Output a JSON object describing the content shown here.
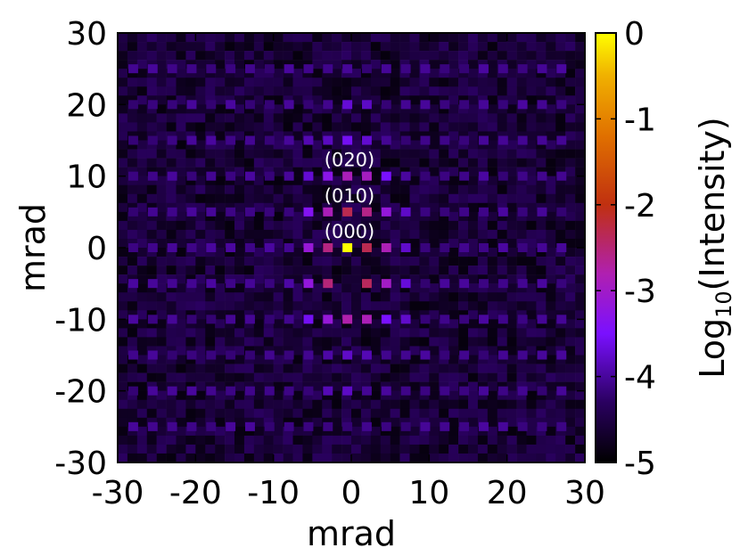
{
  "chart_data": {
    "type": "heatmap",
    "xlabel": "mrad",
    "ylabel": "mrad",
    "xlim": [
      -30,
      30
    ],
    "ylim": [
      -30,
      30
    ],
    "xticks": [
      "-30",
      "-20",
      "-10",
      "0",
      "10",
      "20",
      "30"
    ],
    "yticks": [
      "30",
      "20",
      "10",
      "0",
      "-10",
      "-20",
      "-30"
    ],
    "colorbar": {
      "label_main": "Log",
      "label_sub": "10",
      "label_rest": "(Intensity)",
      "range": [
        -5,
        0
      ],
      "ticks": [
        "0",
        "-1",
        "-2",
        "-3",
        "-4",
        "-5"
      ],
      "palette": [
        "#000000",
        "#2a0060",
        "#7a10ff",
        "#b020b0",
        "#c03010",
        "#e07000",
        "#f0b000",
        "#ffff00"
      ]
    },
    "annotations": [
      {
        "text": "(020)",
        "x": 0,
        "y": 10
      },
      {
        "text": "(010)",
        "x": 0,
        "y": 5
      },
      {
        "text": "(000)",
        "x": 0,
        "y": 0
      }
    ],
    "grid": {
      "step_mrad": 1.25,
      "background_log_intensity": [
        -4.9,
        -4.3
      ]
    },
    "peak_rows": [
      {
        "y": 25,
        "x_range": [
          -28,
          28
        ],
        "x_step": 2.5,
        "base_level": -4.0,
        "falloff": 0.02
      },
      {
        "y": 20,
        "x_range": [
          -28,
          28
        ],
        "x_step": 2.5,
        "base_level": -3.8,
        "falloff": 0.02
      },
      {
        "y": 15,
        "x_range": [
          -28,
          28
        ],
        "x_step": 2.5,
        "base_level": -3.6,
        "falloff": 0.025
      },
      {
        "y": 10,
        "x_range": [
          -28,
          28
        ],
        "x_step": 2.5,
        "base_level": -2.7,
        "falloff": 0.06
      },
      {
        "y": 5,
        "x_range": [
          -28,
          28
        ],
        "x_step": 2.5,
        "base_level": -2.1,
        "falloff": 0.085
      },
      {
        "y": 0,
        "x_range": [
          -28,
          28
        ],
        "x_step": 2.5,
        "base_level": -1.6,
        "falloff": 0.1,
        "center_level": 0
      },
      {
        "y": -5,
        "x_range": [
          -28,
          28
        ],
        "x_step": 2.5,
        "base_level": -1.8,
        "falloff": 0.09,
        "center_gap": true
      },
      {
        "y": -10,
        "x_range": [
          -28,
          28
        ],
        "x_step": 2.5,
        "base_level": -2.6,
        "falloff": 0.06
      },
      {
        "y": -15,
        "x_range": [
          -28,
          28
        ],
        "x_step": 2.5,
        "base_level": -3.7,
        "falloff": 0.02
      },
      {
        "y": -20,
        "x_range": [
          -28,
          28
        ],
        "x_step": 2.5,
        "base_level": -3.8,
        "falloff": 0.02
      },
      {
        "y": -25,
        "x_range": [
          -28,
          28
        ],
        "x_step": 2.5,
        "base_level": -4.1,
        "falloff": 0.015
      }
    ]
  }
}
